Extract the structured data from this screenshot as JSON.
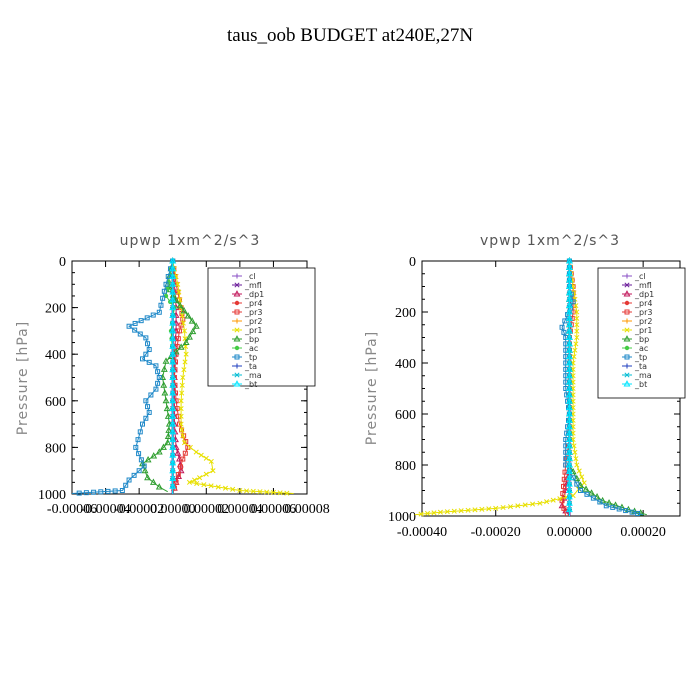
{
  "title": "taus_oob  BUDGET at240E,27N",
  "legend_labels": [
    "_cl",
    "_mfl",
    "_dp1",
    "_pr4",
    "_pr3",
    "_pr2",
    "_pr1",
    "_bp",
    "_ac",
    "_tp",
    "_ta",
    "_ma",
    "_bt"
  ],
  "chart_data": [
    {
      "type": "line",
      "title": "upwp   1xm^2/s^3",
      "ylabel": "Pressure [hPa]",
      "ylim": [
        1000,
        0
      ],
      "xlim": [
        -6e-05,
        8e-05
      ],
      "yticks": [
        "0",
        "200",
        "400",
        "600",
        "800",
        "1000"
      ],
      "xticks": [
        "-0.00006",
        "-0.00004",
        "-0.00002",
        "0.00000",
        "0.00002",
        "0.00004",
        "0.00006",
        "0.00008"
      ],
      "legend_position": "top-right",
      "series": [
        {
          "name": "_cl",
          "color": "#8a4fc4",
          "x": [
            0,
            0,
            0,
            0,
            0,
            0,
            0,
            0,
            0,
            0,
            0
          ],
          "y": [
            0,
            100,
            200,
            300,
            400,
            500,
            600,
            700,
            800,
            900,
            1000
          ]
        },
        {
          "name": "_mfl",
          "color": "#6a1b9a",
          "x": [
            0,
            0,
            0,
            0,
            0,
            0,
            0,
            0,
            0,
            0,
            0
          ],
          "y": [
            0,
            100,
            200,
            300,
            400,
            500,
            600,
            700,
            800,
            900,
            1000
          ]
        },
        {
          "name": "_dp1",
          "color": "#c2185b",
          "x": [
            0,
            1e-06,
            2e-06,
            2e-06,
            1e-06,
            1e-06,
            1e-06,
            1e-06,
            2e-06,
            4e-06,
            5e-06,
            2e-06,
            0
          ],
          "y": [
            0,
            100,
            200,
            300,
            400,
            500,
            600,
            700,
            800,
            850,
            900,
            950,
            1000
          ]
        },
        {
          "name": "_pr4",
          "color": "#e53935",
          "x": [
            0,
            0,
            0,
            0,
            0,
            0,
            0,
            0,
            0,
            0,
            0
          ],
          "y": [
            0,
            100,
            200,
            300,
            400,
            500,
            600,
            700,
            800,
            900,
            1000
          ]
        },
        {
          "name": "_pr3",
          "color": "#e53935",
          "x": [
            0,
            2e-06,
            5e-06,
            6e-06,
            4e-06,
            2e-06,
            1e-06,
            2e-06,
            4e-06,
            9e-06,
            6e-06,
            2e-06,
            0
          ],
          "y": [
            0,
            100,
            200,
            250,
            300,
            400,
            500,
            600,
            700,
            800,
            850,
            950,
            1000
          ]
        },
        {
          "name": "_pr2",
          "color": "#ff9800",
          "x": [
            0,
            0,
            0,
            0,
            0,
            0,
            0,
            0,
            0,
            0,
            0
          ],
          "y": [
            0,
            100,
            200,
            300,
            400,
            500,
            600,
            700,
            800,
            900,
            1000
          ]
        },
        {
          "name": "_pr1",
          "color": "#e8e000",
          "x": [
            0,
            3e-06,
            5e-06,
            7e-06,
            8e-06,
            6e-06,
            5e-06,
            5e-06,
            6e-06,
            7e-06,
            1.4e-05,
            2.3e-05,
            2.4e-05,
            1.6e-05,
            1e-05,
            4e-05,
            7.2e-05
          ],
          "y": [
            0,
            100,
            200,
            300,
            400,
            500,
            600,
            700,
            750,
            780,
            820,
            860,
            900,
            930,
            950,
            985,
            998
          ]
        },
        {
          "name": "_bp",
          "color": "#2e9e2e",
          "x": [
            0,
            -3e-06,
            2e-06,
            1.4e-05,
            8e-06,
            -4e-06,
            -6e-06,
            -4e-06,
            -2e-06,
            -3e-06,
            -8e-06,
            -1.8e-05,
            -1.5e-05,
            -8e-06,
            -3e-06
          ],
          "y": [
            0,
            100,
            170,
            280,
            350,
            430,
            500,
            600,
            700,
            780,
            820,
            870,
            930,
            970,
            990
          ]
        },
        {
          "name": "_ac",
          "color": "#44cc44",
          "x": [
            0,
            -4e-06,
            1e-06,
            -1e-06,
            0
          ],
          "y": [
            0,
            150,
            200,
            300,
            400
          ]
        },
        {
          "name": "_tp",
          "color": "#1e88c8",
          "x": [
            0,
            -4e-06,
            -8e-06,
            -2.6e-05,
            -1.6e-05,
            -1.4e-05,
            -1.8e-05,
            -1e-05,
            -8e-06,
            -1e-05,
            -1.6e-05,
            -1.4e-05,
            -1.8e-05,
            -2.2e-05,
            -1.7e-05,
            -2.6e-05,
            -3e-05,
            -6e-05
          ],
          "y": [
            0,
            100,
            220,
            280,
            330,
            380,
            420,
            450,
            500,
            550,
            600,
            650,
            700,
            800,
            880,
            940,
            985,
            998
          ]
        },
        {
          "name": "_ta",
          "color": "#1f3fbf",
          "x": [
            0,
            0,
            0,
            0,
            0,
            0,
            0,
            0,
            0,
            0,
            0
          ],
          "y": [
            0,
            100,
            200,
            300,
            400,
            500,
            600,
            700,
            800,
            900,
            1000
          ]
        },
        {
          "name": "_ma",
          "color": "#00bcd4",
          "x": [
            0,
            0,
            0,
            0,
            0,
            0,
            0,
            0,
            0,
            0,
            0
          ],
          "y": [
            0,
            100,
            200,
            300,
            400,
            500,
            600,
            700,
            800,
            900,
            1000
          ]
        },
        {
          "name": "_bt",
          "color": "#00e5ff",
          "x": [
            0,
            0,
            0,
            0,
            0,
            0,
            0,
            0,
            0,
            0,
            0
          ],
          "y": [
            0,
            100,
            200,
            300,
            400,
            500,
            600,
            700,
            800,
            900,
            1000
          ]
        }
      ]
    },
    {
      "type": "line",
      "title": "vpwp   1xm^2/s^3",
      "ylabel": "Pressure [hPa]",
      "ylim": [
        1000,
        0
      ],
      "xlim": [
        -0.0004,
        0.0003
      ],
      "yticks": [
        "0",
        "200",
        "400",
        "600",
        "800",
        "1000"
      ],
      "xticks": [
        "-0.00040",
        "-0.00020",
        "0.00000",
        "0.00020"
      ],
      "legend_position": "top-right",
      "series": [
        {
          "name": "_cl",
          "color": "#8a4fc4",
          "x": [
            0,
            0,
            0,
            0,
            0,
            0,
            0,
            0,
            0,
            0,
            0
          ],
          "y": [
            0,
            100,
            200,
            300,
            400,
            500,
            600,
            700,
            800,
            900,
            1000
          ]
        },
        {
          "name": "_mfl",
          "color": "#6a1b9a",
          "x": [
            0,
            0,
            0,
            0,
            0,
            0,
            0,
            0,
            0,
            0,
            0
          ],
          "y": [
            0,
            100,
            200,
            300,
            400,
            500,
            600,
            700,
            800,
            900,
            1000
          ]
        },
        {
          "name": "_dp1",
          "color": "#c2185b",
          "x": [
            0,
            0,
            0,
            0,
            0,
            0,
            0,
            0,
            0,
            -1e-05,
            -2e-05,
            0
          ],
          "y": [
            0,
            100,
            200,
            300,
            400,
            500,
            600,
            700,
            800,
            900,
            960,
            1000
          ]
        },
        {
          "name": "_pr4",
          "color": "#e53935",
          "x": [
            0,
            0,
            0,
            0,
            0,
            0,
            0,
            0,
            0,
            0,
            0
          ],
          "y": [
            0,
            100,
            200,
            300,
            400,
            500,
            600,
            700,
            800,
            900,
            1000
          ]
        },
        {
          "name": "_pr3",
          "color": "#e53935",
          "x": [
            0,
            1e-05,
            1e-05,
            0,
            0,
            0,
            0,
            0,
            -1e-05,
            -2e-05,
            -1e-05
          ],
          "y": [
            0,
            100,
            200,
            300,
            400,
            500,
            600,
            700,
            800,
            940,
            1000
          ]
        },
        {
          "name": "_pr2",
          "color": "#ff9800",
          "x": [
            0,
            0,
            0,
            0,
            0,
            0,
            0,
            0,
            0,
            0,
            0
          ],
          "y": [
            0,
            100,
            200,
            300,
            400,
            500,
            600,
            700,
            800,
            900,
            1000
          ]
        },
        {
          "name": "_pr1",
          "color": "#e8e000",
          "x": [
            0,
            1e-05,
            2e-05,
            2e-05,
            1e-05,
            1e-05,
            1e-05,
            1e-05,
            2e-05,
            4e-05,
            1e-05,
            -8e-05,
            -0.0002,
            -0.00035,
            -0.00042
          ],
          "y": [
            0,
            100,
            200,
            300,
            400,
            500,
            600,
            700,
            800,
            870,
            920,
            950,
            970,
            985,
            995
          ]
        },
        {
          "name": "_bp",
          "color": "#2e9e2e",
          "x": [
            0,
            0,
            0,
            0,
            0,
            0,
            0,
            0,
            0,
            3e-05,
            9e-05,
            0.00016,
            0.00021
          ],
          "y": [
            0,
            100,
            200,
            300,
            400,
            500,
            600,
            700,
            800,
            880,
            940,
            975,
            995
          ]
        },
        {
          "name": "_ac",
          "color": "#44cc44",
          "x": [
            0,
            0,
            0,
            0,
            0,
            0,
            0,
            0,
            0,
            0,
            0
          ],
          "y": [
            0,
            100,
            200,
            300,
            400,
            500,
            600,
            700,
            800,
            900,
            1000
          ]
        },
        {
          "name": "_tp",
          "color": "#1e88c8",
          "x": [
            0,
            0,
            1e-05,
            -2e-05,
            -1e-05,
            -1e-05,
            -1e-05,
            -1e-05,
            0,
            -1e-05,
            -1e-05,
            3e-05,
            0.0001,
            0.00017,
            0.0002
          ],
          "y": [
            0,
            100,
            160,
            260,
            300,
            350,
            400,
            500,
            600,
            700,
            800,
            900,
            960,
            985,
            995
          ]
        },
        {
          "name": "_ta",
          "color": "#1f3fbf",
          "x": [
            0,
            0,
            0,
            0,
            0,
            0,
            0,
            0,
            0,
            0,
            0
          ],
          "y": [
            0,
            100,
            200,
            300,
            400,
            500,
            600,
            700,
            800,
            900,
            1000
          ]
        },
        {
          "name": "_ma",
          "color": "#00bcd4",
          "x": [
            0,
            0,
            0,
            0,
            0,
            0,
            0,
            0,
            0,
            0,
            0
          ],
          "y": [
            0,
            100,
            200,
            300,
            400,
            500,
            600,
            700,
            800,
            900,
            1000
          ]
        },
        {
          "name": "_bt",
          "color": "#00e5ff",
          "x": [
            0,
            0,
            0,
            0,
            0,
            0,
            0,
            0,
            0,
            0,
            0
          ],
          "y": [
            0,
            100,
            200,
            300,
            400,
            500,
            600,
            700,
            800,
            900,
            1000
          ]
        }
      ]
    }
  ]
}
